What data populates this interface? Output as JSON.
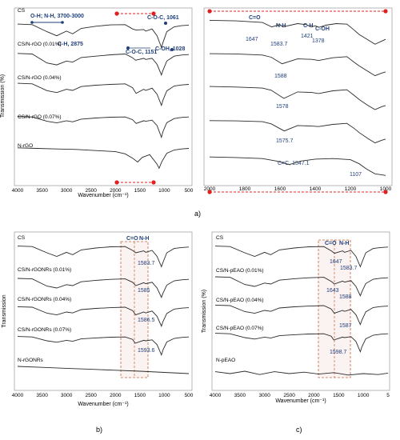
{
  "chart_data": [
    {
      "id": "a_left",
      "type": "line",
      "xlabel": "Wavenumber (cm⁻¹)",
      "ylabel": "Transmission (%)",
      "xlim": [
        4000,
        500
      ],
      "x_ticks": [
        "4000",
        "3500",
        "3000",
        "2500",
        "2000",
        "1500",
        "1000",
        "500"
      ],
      "series": [
        {
          "name": "CS",
          "x": [
            4000,
            3700,
            3400,
            3200,
            3000,
            2875,
            2700,
            2400,
            2100,
            1800,
            1650,
            1580,
            1420,
            1380,
            1250,
            1150,
            1060,
            1028,
            950,
            800,
            650,
            500
          ],
          "y": [
            0.12,
            0.14,
            0.4,
            0.55,
            0.38,
            0.48,
            0.28,
            0.2,
            0.15,
            0.14,
            0.3,
            0.34,
            0.32,
            0.38,
            0.3,
            0.55,
            0.98,
            0.8,
            0.4,
            0.22,
            0.18,
            0.16
          ]
        },
        {
          "name": "CS/N-rGO (0.01%)",
          "x": [
            4000,
            3700,
            3400,
            3200,
            3000,
            2875,
            2700,
            2400,
            2100,
            1800,
            1650,
            1588,
            1420,
            1380,
            1250,
            1150,
            1060,
            1028,
            950,
            800,
            650,
            500
          ],
          "y": [
            0.2,
            0.22,
            0.55,
            0.62,
            0.48,
            0.52,
            0.35,
            0.3,
            0.25,
            0.22,
            0.36,
            0.45,
            0.38,
            0.42,
            0.38,
            0.6,
            0.99,
            0.82,
            0.48,
            0.3,
            0.26,
            0.24
          ]
        },
        {
          "name": "CS/N-rGO (0.04%)",
          "x": [
            4000,
            3700,
            3400,
            3200,
            3000,
            2875,
            2700,
            2400,
            2100,
            1800,
            1650,
            1578,
            1420,
            1380,
            1250,
            1150,
            1060,
            1028,
            950,
            800,
            650,
            500
          ],
          "y": [
            0.18,
            0.2,
            0.45,
            0.52,
            0.4,
            0.44,
            0.3,
            0.25,
            0.22,
            0.2,
            0.34,
            0.55,
            0.4,
            0.44,
            0.36,
            0.58,
            0.99,
            0.8,
            0.46,
            0.28,
            0.24,
            0.22
          ]
        },
        {
          "name": "CS/N-rGO (0.07%)",
          "x": [
            4000,
            3700,
            3400,
            3200,
            3000,
            2875,
            2700,
            2400,
            2100,
            1800,
            1650,
            1576,
            1420,
            1380,
            1250,
            1150,
            1060,
            1028,
            950,
            800,
            650,
            500
          ],
          "y": [
            0.22,
            0.24,
            0.4,
            0.46,
            0.38,
            0.42,
            0.32,
            0.28,
            0.25,
            0.24,
            0.34,
            0.48,
            0.38,
            0.4,
            0.36,
            0.56,
            0.99,
            0.78,
            0.45,
            0.3,
            0.26,
            0.24
          ]
        },
        {
          "name": "N-rGO",
          "x": [
            4000,
            3600,
            3200,
            2800,
            2400,
            2000,
            1800,
            1650,
            1547,
            1450,
            1300,
            1150,
            1107,
            1050,
            950,
            800,
            650,
            500
          ],
          "y": [
            0.2,
            0.22,
            0.24,
            0.26,
            0.3,
            0.34,
            0.42,
            0.58,
            0.72,
            0.55,
            0.45,
            0.8,
            0.95,
            0.7,
            0.4,
            0.28,
            0.24,
            0.22
          ]
        }
      ],
      "annotations": [
        "O-H; N-H, 3700-3000",
        "C-H, 2875",
        "C-O-C, 1151",
        "C-O-C, 1061",
        "C-OH, 1028"
      ]
    },
    {
      "id": "a_right",
      "type": "line",
      "xlim": [
        2000,
        1000
      ],
      "x_ticks": [
        "2000",
        "1800",
        "1600",
        "1400",
        "1200",
        "1000"
      ],
      "series": [
        {
          "name": "CS",
          "x": [
            2000,
            1850,
            1700,
            1647,
            1600,
            1583.7,
            1500,
            1450,
            1421,
            1400,
            1378,
            1340,
            1280,
            1220,
            1180,
            1150,
            1100,
            1060,
            1020,
            1000
          ],
          "y": [
            0.1,
            0.12,
            0.18,
            0.34,
            0.26,
            0.34,
            0.22,
            0.26,
            0.34,
            0.3,
            0.36,
            0.28,
            0.22,
            0.24,
            0.45,
            0.62,
            0.82,
            0.98,
            0.86,
            0.8
          ]
        },
        {
          "name": "CS/N-rGO (0.01%)",
          "x": [
            2000,
            1850,
            1700,
            1650,
            1588,
            1500,
            1420,
            1380,
            1300,
            1220,
            1180,
            1150,
            1100,
            1060,
            1020,
            1000
          ],
          "y": [
            0.15,
            0.16,
            0.2,
            0.28,
            0.52,
            0.34,
            0.36,
            0.4,
            0.3,
            0.26,
            0.46,
            0.6,
            0.8,
            0.96,
            0.86,
            0.82
          ]
        },
        {
          "name": "CS/N-rGO (0.04%)",
          "x": [
            2000,
            1850,
            1700,
            1650,
            1578,
            1500,
            1420,
            1380,
            1300,
            1220,
            1180,
            1150,
            1100,
            1060,
            1020,
            1000
          ],
          "y": [
            0.12,
            0.14,
            0.18,
            0.26,
            0.56,
            0.32,
            0.34,
            0.38,
            0.28,
            0.24,
            0.44,
            0.6,
            0.82,
            0.97,
            0.86,
            0.82
          ]
        },
        {
          "name": "CS/N-rGO (0.07%)",
          "x": [
            2000,
            1850,
            1700,
            1650,
            1575.7,
            1500,
            1420,
            1380,
            1300,
            1220,
            1180,
            1150,
            1100,
            1060,
            1020,
            1000
          ],
          "y": [
            0.14,
            0.15,
            0.18,
            0.26,
            0.52,
            0.32,
            0.34,
            0.36,
            0.28,
            0.24,
            0.42,
            0.58,
            0.8,
            0.96,
            0.86,
            0.82
          ]
        },
        {
          "name": "N-rGO",
          "x": [
            2000,
            1850,
            1700,
            1620,
            1547.1,
            1480,
            1400,
            1300,
            1200,
            1150,
            1107,
            1060,
            1020,
            1000
          ],
          "y": [
            0.3,
            0.32,
            0.36,
            0.45,
            0.58,
            0.45,
            0.38,
            0.36,
            0.4,
            0.55,
            0.75,
            0.92,
            0.96,
            0.98
          ]
        }
      ],
      "annotations": [
        "C=O",
        "N-H",
        "C-H",
        "C-OH",
        "1647",
        "1583.7",
        "1421",
        "1378",
        "1588",
        "1578",
        "1575.7",
        "C=C, 1547.1",
        "1107"
      ]
    },
    {
      "id": "b",
      "type": "line",
      "xlabel": "Wavenumber (cm⁻¹)",
      "ylabel": "Transmission",
      "xlim": [
        4000,
        500
      ],
      "x_ticks": [
        "4000",
        "3500",
        "3000",
        "2500",
        "2000",
        "1500",
        "1000",
        "500"
      ],
      "series": [
        {
          "name": "CS",
          "x": [
            4000,
            3700,
            3400,
            3200,
            3000,
            2875,
            2700,
            2400,
            2100,
            1800,
            1650,
            1583.7,
            1420,
            1380,
            1250,
            1150,
            1060,
            1028,
            950,
            800,
            650,
            500
          ],
          "y": [
            0.12,
            0.14,
            0.4,
            0.55,
            0.38,
            0.48,
            0.28,
            0.2,
            0.15,
            0.14,
            0.3,
            0.4,
            0.32,
            0.38,
            0.3,
            0.55,
            0.98,
            0.8,
            0.4,
            0.22,
            0.18,
            0.16
          ]
        },
        {
          "name": "CS/N-rGONRs (0.01%)",
          "x": [
            4000,
            3700,
            3400,
            3200,
            3000,
            2875,
            2700,
            2400,
            2100,
            1800,
            1650,
            1585,
            1420,
            1380,
            1250,
            1150,
            1060,
            1028,
            950,
            800,
            650,
            500
          ],
          "y": [
            0.2,
            0.22,
            0.52,
            0.6,
            0.46,
            0.5,
            0.34,
            0.28,
            0.24,
            0.22,
            0.36,
            0.5,
            0.38,
            0.42,
            0.36,
            0.6,
            0.99,
            0.82,
            0.48,
            0.3,
            0.26,
            0.24
          ]
        },
        {
          "name": "CS/N-rGONRs (0.04%)",
          "x": [
            4000,
            3700,
            3400,
            3200,
            3000,
            2875,
            2700,
            2400,
            2100,
            1800,
            1650,
            1586.5,
            1420,
            1380,
            1250,
            1150,
            1060,
            1028,
            950,
            800,
            650,
            500
          ],
          "y": [
            0.18,
            0.2,
            0.45,
            0.52,
            0.4,
            0.44,
            0.3,
            0.25,
            0.22,
            0.2,
            0.34,
            0.52,
            0.4,
            0.44,
            0.36,
            0.58,
            0.99,
            0.8,
            0.46,
            0.28,
            0.24,
            0.22
          ]
        },
        {
          "name": "CS/N-rGONRs (0.07%)",
          "x": [
            4000,
            3700,
            3400,
            3200,
            3000,
            2875,
            2700,
            2400,
            2100,
            1800,
            1650,
            1593.6,
            1420,
            1380,
            1250,
            1150,
            1060,
            1028,
            950,
            800,
            650,
            500
          ],
          "y": [
            0.22,
            0.24,
            0.4,
            0.46,
            0.38,
            0.42,
            0.32,
            0.28,
            0.25,
            0.24,
            0.34,
            0.5,
            0.38,
            0.4,
            0.36,
            0.56,
            0.99,
            0.78,
            0.45,
            0.3,
            0.26,
            0.24
          ]
        },
        {
          "name": "N-rGONRs",
          "x": [
            4000,
            3500,
            3000,
            2500,
            2000,
            1500,
            1000,
            500
          ],
          "y": [
            0.2,
            0.24,
            0.28,
            0.32,
            0.36,
            0.4,
            0.45,
            0.5
          ]
        }
      ],
      "annotations": [
        "C=O",
        "N-H",
        "1583.7",
        "1585",
        "1586.5",
        "1593.6"
      ]
    },
    {
      "id": "c",
      "type": "line",
      "xlabel": "Wavenumber (cm⁻¹)",
      "ylabel": "Transmission (%)",
      "xlim": [
        4000,
        500
      ],
      "x_ticks": [
        "4000",
        "3500",
        "3000",
        "2500",
        "2000",
        "1500",
        "1000",
        "5"
      ],
      "series": [
        {
          "name": "CS",
          "x": [
            4000,
            3700,
            3400,
            3200,
            3000,
            2875,
            2700,
            2400,
            2100,
            1800,
            1647,
            1583.7,
            1420,
            1380,
            1250,
            1150,
            1060,
            1028,
            950,
            800,
            650,
            500
          ],
          "y": [
            0.12,
            0.14,
            0.4,
            0.55,
            0.38,
            0.48,
            0.28,
            0.2,
            0.15,
            0.14,
            0.32,
            0.42,
            0.32,
            0.38,
            0.3,
            0.55,
            0.98,
            0.8,
            0.4,
            0.22,
            0.18,
            0.16
          ]
        },
        {
          "name": "CS/N-pEAO (0.01%)",
          "x": [
            4000,
            3700,
            3400,
            3200,
            3000,
            2875,
            2700,
            2400,
            2100,
            1800,
            1643,
            1588,
            1420,
            1380,
            1250,
            1150,
            1060,
            1028,
            950,
            800,
            650,
            500
          ],
          "y": [
            0.2,
            0.22,
            0.52,
            0.6,
            0.46,
            0.5,
            0.34,
            0.28,
            0.24,
            0.22,
            0.4,
            0.5,
            0.38,
            0.42,
            0.36,
            0.6,
            0.99,
            0.82,
            0.48,
            0.3,
            0.26,
            0.24
          ]
        },
        {
          "name": "CS/N-pEAO (0.04%)",
          "x": [
            4000,
            3700,
            3400,
            3200,
            3000,
            2875,
            2700,
            2400,
            2100,
            1800,
            1650,
            1587,
            1420,
            1380,
            1250,
            1150,
            1060,
            1028,
            950,
            800,
            650,
            500
          ],
          "y": [
            0.18,
            0.2,
            0.45,
            0.52,
            0.4,
            0.44,
            0.3,
            0.25,
            0.22,
            0.2,
            0.34,
            0.52,
            0.4,
            0.44,
            0.36,
            0.58,
            0.99,
            0.8,
            0.46,
            0.28,
            0.24,
            0.22
          ]
        },
        {
          "name": "CS/N-pEAO (0.07%)",
          "x": [
            4000,
            3700,
            3400,
            3200,
            3000,
            2875,
            2700,
            2400,
            2100,
            1800,
            1650,
            1598.7,
            1420,
            1380,
            1250,
            1150,
            1060,
            1028,
            950,
            800,
            650,
            500
          ],
          "y": [
            0.22,
            0.24,
            0.4,
            0.46,
            0.38,
            0.42,
            0.32,
            0.28,
            0.25,
            0.24,
            0.34,
            0.5,
            0.38,
            0.4,
            0.36,
            0.56,
            0.99,
            0.78,
            0.45,
            0.3,
            0.26,
            0.24
          ]
        },
        {
          "name": "N-pEAO",
          "x": [
            4000,
            3700,
            3400,
            3100,
            2800,
            2500,
            2200,
            1900,
            1600,
            1300,
            1000,
            700,
            500
          ],
          "y": [
            0.22,
            0.3,
            0.2,
            0.34,
            0.22,
            0.3,
            0.24,
            0.32,
            0.26,
            0.36,
            0.3,
            0.34,
            0.28
          ]
        }
      ],
      "annotations": [
        "C=O",
        "N-H",
        "1647",
        "1583.7",
        "1643",
        "1588",
        "1587",
        "1598.7"
      ]
    }
  ],
  "panel_labels": {
    "a": "a)",
    "b": "b)",
    "c": "c)"
  },
  "colors": {
    "curve": "#2b2b2b",
    "annot": "#1f3f7a",
    "marker_red": "#e02020",
    "box": "#c0653a"
  }
}
